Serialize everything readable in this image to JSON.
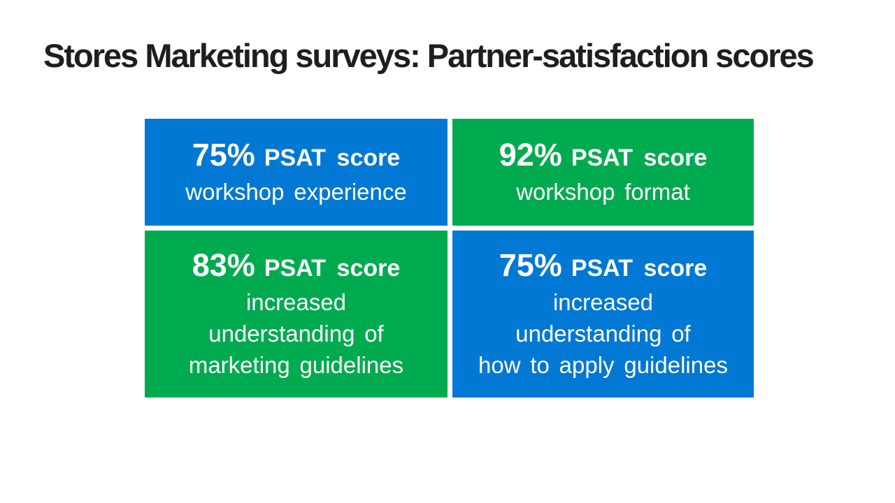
{
  "slide": {
    "title": "Stores Marketing surveys: Partner-satisfaction scores",
    "colors": {
      "blue": "#0078D4",
      "green": "#00AB50",
      "title_text": "#1E1E1E",
      "tile_text": "#FFFFFF",
      "background": "#FFFFFF"
    },
    "tiles": [
      {
        "score": "75%",
        "score_label": "PSAT score",
        "color": "blue",
        "description_lines": [
          "workshop experience"
        ]
      },
      {
        "score": "92%",
        "score_label": "PSAT score",
        "color": "green",
        "description_lines": [
          "workshop format"
        ]
      },
      {
        "score": "83%",
        "score_label": "PSAT score",
        "color": "green",
        "description_lines": [
          "increased",
          "understanding of",
          "marketing guidelines"
        ]
      },
      {
        "score": "75%",
        "score_label": "PSAT score",
        "color": "blue",
        "description_lines": [
          "increased",
          "understanding of",
          "how to apply guidelines"
        ]
      }
    ]
  }
}
